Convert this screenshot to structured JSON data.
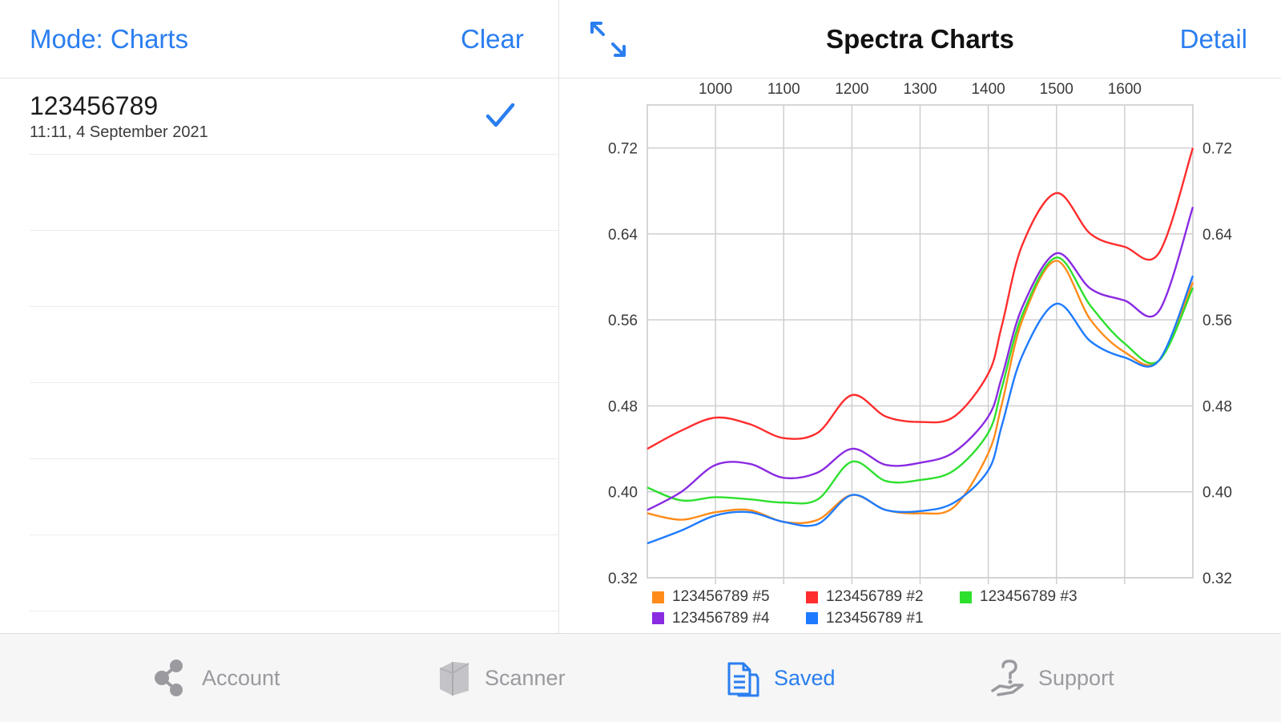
{
  "left": {
    "mode_label": "Mode: Charts",
    "clear_label": "Clear",
    "items": [
      {
        "title": "123456789",
        "subtitle": "11:11, 4 September 2021",
        "checked": true
      }
    ]
  },
  "right": {
    "title": "Spectra Charts",
    "detail_label": "Detail",
    "expand_icon": "expand-arrows-icon"
  },
  "chart_data": {
    "type": "line",
    "title": "",
    "xlabel": "",
    "ylabel": "",
    "xlim": [
      900,
      1700
    ],
    "ylim": [
      0.32,
      0.76
    ],
    "x_ticks": [
      1000,
      1100,
      1200,
      1300,
      1400,
      1500,
      1600
    ],
    "x_tick_labels": [
      "1000",
      "1100",
      "1200",
      "1300",
      "1400",
      "1500",
      "1600"
    ],
    "y_ticks": [
      0.32,
      0.4,
      0.48,
      0.56,
      0.64,
      0.72
    ],
    "y_tick_labels": [
      "0.32",
      "0.40",
      "0.48",
      "0.56",
      "0.64",
      "0.72"
    ],
    "x_axis_position": "top",
    "y_axis_position": "both",
    "grid": true,
    "legend": "bottom",
    "x": [
      900,
      950,
      1000,
      1050,
      1100,
      1150,
      1200,
      1250,
      1300,
      1350,
      1400,
      1420,
      1450,
      1500,
      1550,
      1600,
      1650,
      1700
    ],
    "series": [
      {
        "name": "123456789 #5",
        "color": "#ff8c1a",
        "values": [
          0.38,
          0.374,
          0.381,
          0.383,
          0.372,
          0.374,
          0.397,
          0.383,
          0.38,
          0.386,
          0.436,
          0.482,
          0.56,
          0.615,
          0.56,
          0.53,
          0.522,
          0.595
        ]
      },
      {
        "name": "123456789 #2",
        "color": "#ff2d2d",
        "values": [
          0.44,
          0.457,
          0.469,
          0.463,
          0.45,
          0.455,
          0.49,
          0.47,
          0.465,
          0.47,
          0.51,
          0.555,
          0.63,
          0.678,
          0.64,
          0.628,
          0.622,
          0.72
        ]
      },
      {
        "name": "123456789 #3",
        "color": "#2ee02e",
        "values": [
          0.404,
          0.392,
          0.395,
          0.393,
          0.39,
          0.393,
          0.428,
          0.41,
          0.411,
          0.42,
          0.455,
          0.497,
          0.565,
          0.618,
          0.573,
          0.538,
          0.522,
          0.59
        ]
      },
      {
        "name": "123456789 #4",
        "color": "#8a2be2",
        "values": [
          0.383,
          0.4,
          0.425,
          0.426,
          0.413,
          0.418,
          0.44,
          0.425,
          0.427,
          0.437,
          0.47,
          0.507,
          0.572,
          0.622,
          0.589,
          0.578,
          0.568,
          0.665
        ]
      },
      {
        "name": "123456789 #1",
        "color": "#1e7bff",
        "values": [
          0.352,
          0.364,
          0.378,
          0.381,
          0.372,
          0.37,
          0.397,
          0.383,
          0.382,
          0.39,
          0.42,
          0.462,
          0.527,
          0.575,
          0.54,
          0.525,
          0.522,
          0.601
        ]
      }
    ]
  },
  "tab_bar": {
    "active": "Saved",
    "tabs": [
      {
        "label": "Account",
        "icon": "share-icon"
      },
      {
        "label": "Scanner",
        "icon": "scanner-icon"
      },
      {
        "label": "Saved",
        "icon": "documents-icon"
      },
      {
        "label": "Support",
        "icon": "help-hand-icon"
      }
    ]
  }
}
